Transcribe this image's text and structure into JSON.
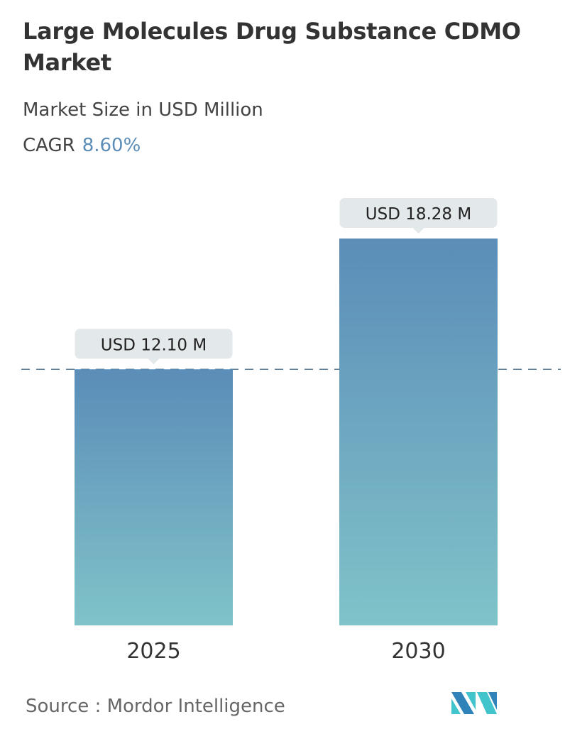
{
  "title": "Large Molecules Drug Substance CDMO Market",
  "subtitle": "Market Size in USD Million",
  "cagr_label": "CAGR",
  "cagr_value": "8.60%",
  "source": "Source :  Mordor Intelligence",
  "logo_text": "MI",
  "colors": {
    "bar_top": "#5b8db8",
    "bar_bottom": "#80c3c9",
    "cagr": "#5b8db8",
    "label_bg": "#e3e8eb"
  },
  "chart_data": {
    "type": "bar",
    "categories": [
      "2025",
      "2030"
    ],
    "values": [
      12.1,
      18.28
    ],
    "data_labels": [
      "USD 12.10 M",
      "USD 18.28 M"
    ],
    "title": "Large Molecules Drug Substance CDMO Market",
    "ylabel": "",
    "xlabel": "",
    "ylim": [
      0,
      18.28
    ],
    "grid": false,
    "reference_line": "dashed at 2025 value"
  }
}
